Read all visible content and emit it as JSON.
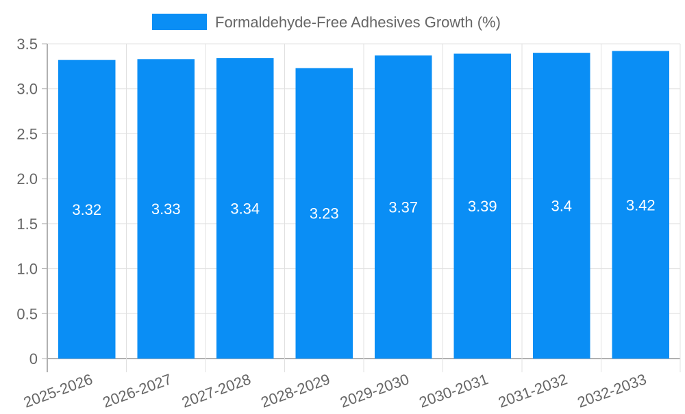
{
  "chart_data": {
    "type": "bar",
    "title": "",
    "legend": {
      "label": "Formaldehyde-Free Adhesives Growth (%)",
      "position": "top-center"
    },
    "categories": [
      "2025-2026",
      "2026-2027",
      "2027-2028",
      "2028-2029",
      "2029-2030",
      "2030-2031",
      "2031-2032",
      "2032-2033"
    ],
    "series": [
      {
        "name": "Formaldehyde-Free Adhesives Growth (%)",
        "values": [
          3.32,
          3.33,
          3.34,
          3.23,
          3.37,
          3.39,
          3.4,
          3.42
        ]
      }
    ],
    "data_labels": [
      "3.32",
      "3.33",
      "3.34",
      "3.23",
      "3.37",
      "3.39",
      "3.4",
      "3.42"
    ],
    "yticks": [
      "0",
      "0.5",
      "1.0",
      "1.5",
      "2.0",
      "2.5",
      "3.0",
      "3.5"
    ],
    "ytick_values": [
      0,
      0.5,
      1,
      1.5,
      2,
      2.5,
      3,
      3.5
    ],
    "ylim": [
      0,
      3.5
    ],
    "xlabel": "",
    "ylabel": "",
    "grid": true,
    "colors": {
      "bar": "#0a8ef5",
      "grid": "#e0e0e0",
      "axis": "#b0b0b0",
      "text": "#666666",
      "label": "#ffffff"
    }
  }
}
